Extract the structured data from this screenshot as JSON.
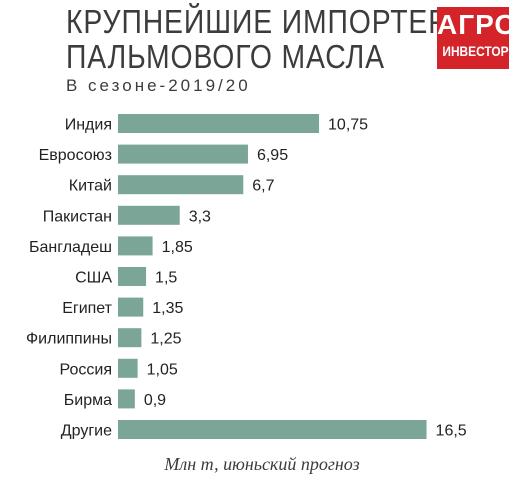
{
  "header": {
    "title_line1": "КРУПНЕЙШИЕ ИМПОРТЕРЫ",
    "title_line2": "ПАЛЬМОВОГО МАСЛА",
    "subtitle": "В сезоне-2019/20"
  },
  "logo": {
    "line1": "АГРО",
    "line2": "ИНВЕСТОР",
    "color": "#d4242a"
  },
  "footnote": "Млн т, июньский прогноз",
  "chart_data": {
    "type": "bar",
    "orientation": "horizontal",
    "title": "КРУПНЕЙШИЕ ИМПОРТЕРЫ ПАЛЬМОВОГО МАСЛА",
    "subtitle": "В сезоне-2019/20",
    "unit": "Млн т, июньский прогноз",
    "categories": [
      "Индия",
      "Евросоюз",
      "Китай",
      "Пакистан",
      "Бангладеш",
      "США",
      "Египет",
      "Филиппины",
      "Россия",
      "Бирма",
      "Другие"
    ],
    "values": [
      10.75,
      6.95,
      6.7,
      3.3,
      1.85,
      1.5,
      1.35,
      1.25,
      1.05,
      0.9,
      16.5
    ],
    "value_labels": [
      "10,75",
      "6,95",
      "6,7",
      "3,3",
      "1,85",
      "1,5",
      "1,35",
      "1,25",
      "1,05",
      "0,9",
      "16,5"
    ],
    "bar_color": "#7aa597",
    "grid": false,
    "legend": "none"
  }
}
